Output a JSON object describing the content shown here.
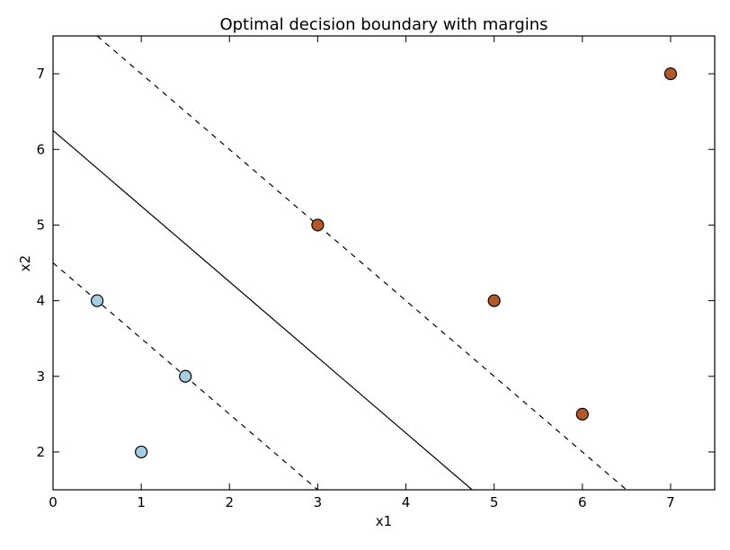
{
  "chart_data": {
    "type": "scatter",
    "title": "Optimal decision boundary with margins",
    "xlabel": "x1",
    "ylabel": "x2",
    "xlim": [
      0,
      7.5
    ],
    "ylim": [
      1.5,
      7.5
    ],
    "xticks": [
      0,
      1,
      2,
      3,
      4,
      5,
      6,
      7
    ],
    "yticks": [
      2,
      3,
      4,
      5,
      6,
      7
    ],
    "grid": false,
    "legend": "none",
    "series": [
      {
        "color": "#a6cee3",
        "points": [
          {
            "x": 0.5,
            "y": 4.0
          },
          {
            "x": 1.0,
            "y": 2.0
          },
          {
            "x": 1.5,
            "y": 3.0
          }
        ]
      },
      {
        "color": "#b15928",
        "points": [
          {
            "x": 3.0,
            "y": 5.0
          },
          {
            "x": 5.0,
            "y": 4.0
          },
          {
            "x": 6.0,
            "y": 2.5
          },
          {
            "x": 7.0,
            "y": 7.0
          }
        ]
      }
    ],
    "lines": [
      {
        "role": "decision-boundary",
        "style": "solid",
        "x": [
          0,
          4.75
        ],
        "y": [
          6.25,
          1.5
        ]
      },
      {
        "role": "margin-upper",
        "style": "dashed",
        "x": [
          0.5,
          6.5
        ],
        "y": [
          7.5,
          1.5
        ]
      },
      {
        "role": "margin-lower",
        "style": "dashed",
        "x": [
          0,
          3.0
        ],
        "y": [
          4.5,
          1.5
        ]
      }
    ]
  }
}
